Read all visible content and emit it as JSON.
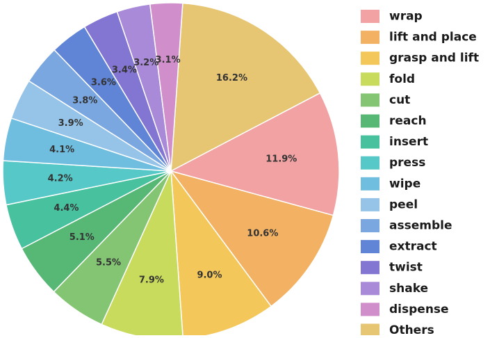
{
  "chart_data": {
    "type": "pie",
    "title": "",
    "legend_placement": "right",
    "slice_border_color": "#ffffff",
    "label_color": "#333333",
    "slices": [
      {
        "label": "Others",
        "value": 16.2,
        "display": "16.2%",
        "color": "#e6c573"
      },
      {
        "label": "wrap",
        "value": 11.9,
        "display": "11.9%",
        "color": "#f2a2a2"
      },
      {
        "label": "lift and place",
        "value": 10.6,
        "display": "10.6%",
        "color": "#f2b163"
      },
      {
        "label": "grasp and lift",
        "value": 9.0,
        "display": "9.0%",
        "color": "#f4c75a"
      },
      {
        "label": "fold",
        "value": 7.9,
        "display": "7.9%",
        "color": "#c8db5c"
      },
      {
        "label": "cut",
        "value": 5.5,
        "display": "5.5%",
        "color": "#84c574"
      },
      {
        "label": "reach",
        "value": 5.1,
        "display": "5.1%",
        "color": "#57b875"
      },
      {
        "label": "insert",
        "value": 4.4,
        "display": "4.4%",
        "color": "#48c19f"
      },
      {
        "label": "press",
        "value": 4.2,
        "display": "4.2%",
        "color": "#57c8c8"
      },
      {
        "label": "wipe",
        "value": 4.1,
        "display": "4.1%",
        "color": "#6fbddf"
      },
      {
        "label": "peel",
        "value": 3.9,
        "display": "3.9%",
        "color": "#95c4e8"
      },
      {
        "label": "assemble",
        "value": 3.8,
        "display": "3.8%",
        "color": "#7aa7e0"
      },
      {
        "label": "extract",
        "value": 3.6,
        "display": "3.6%",
        "color": "#6185d6"
      },
      {
        "label": "twist",
        "value": 3.4,
        "display": "3.4%",
        "color": "#8375d2"
      },
      {
        "label": "shake",
        "value": 3.2,
        "display": "3.2%",
        "color": "#a98ad9"
      },
      {
        "label": "dispense",
        "value": 3.1,
        "display": "3.1%",
        "color": "#d08fcb"
      }
    ],
    "legend_order": [
      "wrap",
      "lift and place",
      "grasp and lift",
      "fold",
      "cut",
      "reach",
      "insert",
      "press",
      "wipe",
      "peel",
      "assemble",
      "extract",
      "twist",
      "shake",
      "dispense",
      "Others"
    ]
  }
}
